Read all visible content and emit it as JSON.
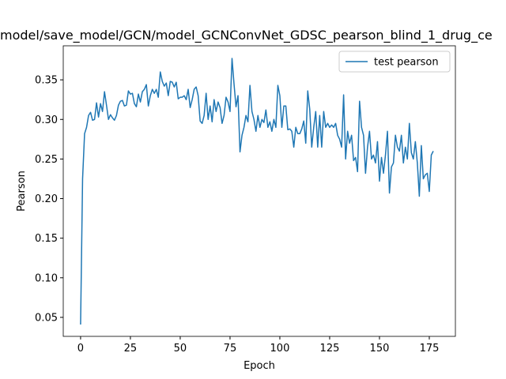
{
  "chart_data": {
    "type": "line",
    "title": "model/save_model/GCN/model_GCNConvNet_GDSC_pearson_blind_1_drug_ce",
    "x_label": "Epoch",
    "y_label": "Pearson",
    "x": [
      0,
      1,
      2,
      3,
      4,
      5,
      6,
      7,
      8,
      9,
      10,
      11,
      12,
      13,
      14,
      15,
      16,
      17,
      18,
      19,
      20,
      21,
      22,
      23,
      24,
      25,
      26,
      27,
      28,
      29,
      30,
      31,
      32,
      33,
      34,
      35,
      36,
      37,
      38,
      39,
      40,
      41,
      42,
      43,
      44,
      45,
      46,
      47,
      48,
      49,
      50,
      51,
      52,
      53,
      54,
      55,
      56,
      57,
      58,
      59,
      60,
      61,
      62,
      63,
      64,
      65,
      66,
      67,
      68,
      69,
      70,
      71,
      72,
      73,
      74,
      75,
      76,
      77,
      78,
      79,
      80,
      81,
      82,
      83,
      84,
      85,
      86,
      87,
      88,
      89,
      90,
      91,
      92,
      93,
      94,
      95,
      96,
      97,
      98,
      99,
      100,
      101,
      102,
      103,
      104,
      105,
      106,
      107,
      108,
      109,
      110,
      111,
      112,
      113,
      114,
      115,
      116,
      117,
      118,
      119,
      120,
      121,
      122,
      123,
      124,
      125,
      126,
      127,
      128,
      129,
      130,
      131,
      132,
      133,
      134,
      135,
      136,
      137,
      138,
      139,
      140,
      141,
      142,
      143,
      144,
      145,
      146,
      147,
      148,
      149,
      150,
      151,
      152,
      153,
      154,
      155,
      156,
      157,
      158,
      159,
      160,
      161,
      162,
      163,
      164,
      165,
      166,
      167,
      168,
      169,
      170,
      171,
      172,
      173,
      174,
      175,
      176,
      177
    ],
    "series": [
      {
        "name": "test pearson",
        "color": "#1f77b4",
        "values": [
          0.041,
          0.225,
          0.282,
          0.29,
          0.305,
          0.309,
          0.299,
          0.3,
          0.321,
          0.303,
          0.32,
          0.31,
          0.335,
          0.318,
          0.3,
          0.306,
          0.302,
          0.299,
          0.305,
          0.318,
          0.323,
          0.324,
          0.317,
          0.318,
          0.336,
          0.332,
          0.333,
          0.32,
          0.316,
          0.332,
          0.322,
          0.335,
          0.338,
          0.344,
          0.317,
          0.33,
          0.338,
          0.333,
          0.338,
          0.328,
          0.36,
          0.348,
          0.342,
          0.346,
          0.33,
          0.348,
          0.347,
          0.341,
          0.347,
          0.326,
          0.328,
          0.328,
          0.33,
          0.325,
          0.338,
          0.315,
          0.325,
          0.338,
          0.341,
          0.33,
          0.298,
          0.295,
          0.305,
          0.333,
          0.3,
          0.317,
          0.297,
          0.325,
          0.31,
          0.322,
          0.315,
          0.295,
          0.305,
          0.328,
          0.322,
          0.31,
          0.377,
          0.345,
          0.316,
          0.33,
          0.259,
          0.28,
          0.29,
          0.305,
          0.297,
          0.343,
          0.31,
          0.3,
          0.285,
          0.305,
          0.29,
          0.3,
          0.296,
          0.312,
          0.29,
          0.297,
          0.285,
          0.3,
          0.29,
          0.343,
          0.33,
          0.29,
          0.317,
          0.317,
          0.287,
          0.288,
          0.285,
          0.265,
          0.29,
          0.282,
          0.282,
          0.288,
          0.298,
          0.27,
          0.336,
          0.313,
          0.265,
          0.29,
          0.31,
          0.265,
          0.305,
          0.265,
          0.31,
          0.29,
          0.295,
          0.29,
          0.293,
          0.29,
          0.295,
          0.28,
          0.275,
          0.265,
          0.331,
          0.25,
          0.285,
          0.27,
          0.28,
          0.248,
          0.252,
          0.234,
          0.323,
          0.29,
          0.28,
          0.232,
          0.265,
          0.285,
          0.25,
          0.255,
          0.245,
          0.272,
          0.222,
          0.252,
          0.232,
          0.255,
          0.285,
          0.207,
          0.24,
          0.245,
          0.28,
          0.265,
          0.26,
          0.28,
          0.245,
          0.265,
          0.25,
          0.295,
          0.258,
          0.25,
          0.272,
          0.245,
          0.203,
          0.267,
          0.225,
          0.23,
          0.232,
          0.209,
          0.255,
          0.26
        ]
      }
    ],
    "xlim": [
      -8.7,
      188.1
    ],
    "ylim": [
      0.026,
      0.393
    ],
    "xticks": [
      0,
      25,
      50,
      75,
      100,
      125,
      150,
      175
    ],
    "yticks": [
      0.05,
      {
        "value": 0.1,
        "label": "0.10"
      },
      0.15,
      {
        "value": 0.2,
        "label": "0.20"
      },
      0.25,
      {
        "value": 0.3,
        "label": "0.30"
      },
      0.35
    ],
    "grid": false,
    "legend": "upper right"
  }
}
